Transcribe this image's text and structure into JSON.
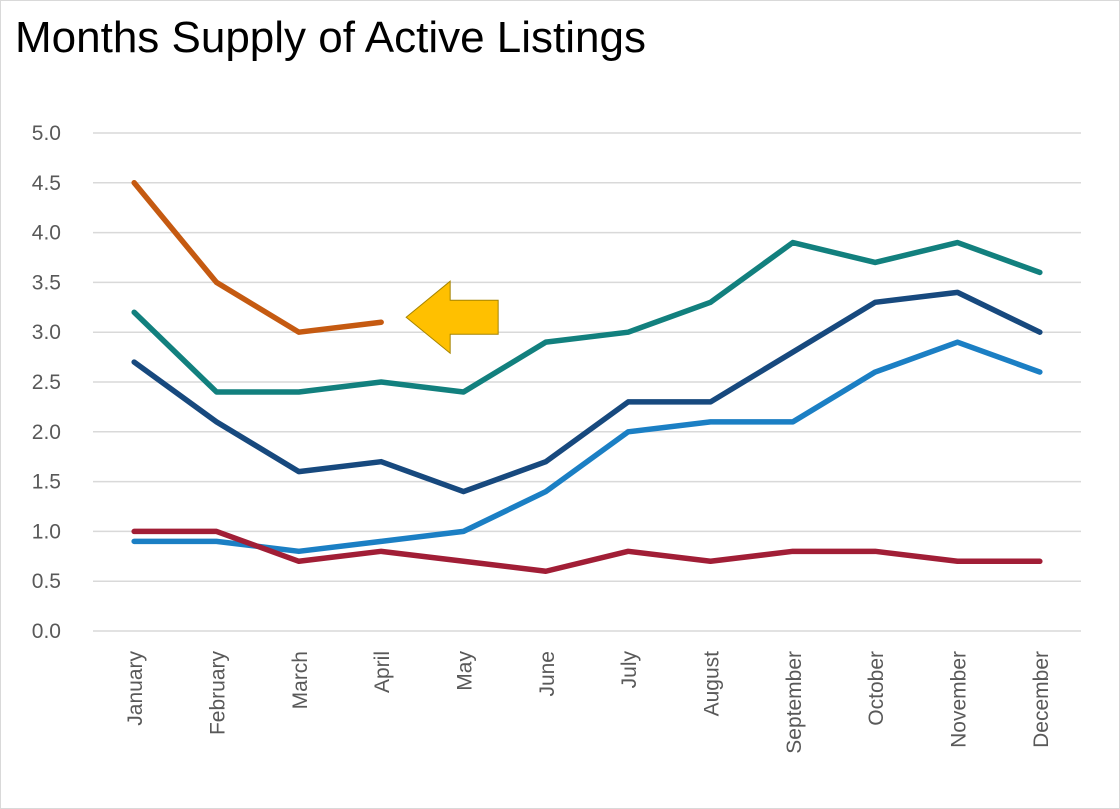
{
  "chart_data": {
    "type": "line",
    "title": "Months Supply of Active Listings",
    "xlabel": "",
    "ylabel": "",
    "categories": [
      "January",
      "February",
      "March",
      "April",
      "May",
      "June",
      "July",
      "August",
      "September",
      "October",
      "November",
      "December"
    ],
    "ylim": [
      0,
      5
    ],
    "yticks": [
      "0.0",
      "0.5",
      "1.0",
      "1.5",
      "2.0",
      "2.5",
      "3.0",
      "3.5",
      "4.0",
      "4.5",
      "5.0"
    ],
    "grid": true,
    "legend": "none",
    "series": [
      {
        "color": "#C55A11",
        "values": [
          4.5,
          3.5,
          3.0,
          3.1,
          null,
          null,
          null,
          null,
          null,
          null,
          null,
          null
        ]
      },
      {
        "color": "#12807E",
        "values": [
          3.2,
          2.4,
          2.4,
          2.5,
          2.4,
          2.9,
          3.0,
          3.3,
          3.9,
          3.7,
          3.9,
          3.6
        ]
      },
      {
        "color": "#17497E",
        "values": [
          2.7,
          2.1,
          1.6,
          1.7,
          1.4,
          1.7,
          2.3,
          2.3,
          2.8,
          3.3,
          3.4,
          3.0
        ]
      },
      {
        "color": "#1B7FC4",
        "values": [
          0.9,
          0.9,
          0.8,
          0.9,
          1.0,
          1.4,
          2.0,
          2.1,
          2.1,
          2.6,
          2.9,
          2.6
        ]
      },
      {
        "color": "#A11E36",
        "values": [
          1.0,
          1.0,
          0.7,
          0.8,
          0.7,
          0.6,
          0.8,
          0.7,
          0.8,
          0.8,
          0.7,
          0.7
        ]
      }
    ],
    "annotations": [
      {
        "type": "arrow-left",
        "icon": "left-arrow-icon",
        "color": "#FFC000",
        "x_category": "April",
        "y": 3.1
      }
    ]
  }
}
